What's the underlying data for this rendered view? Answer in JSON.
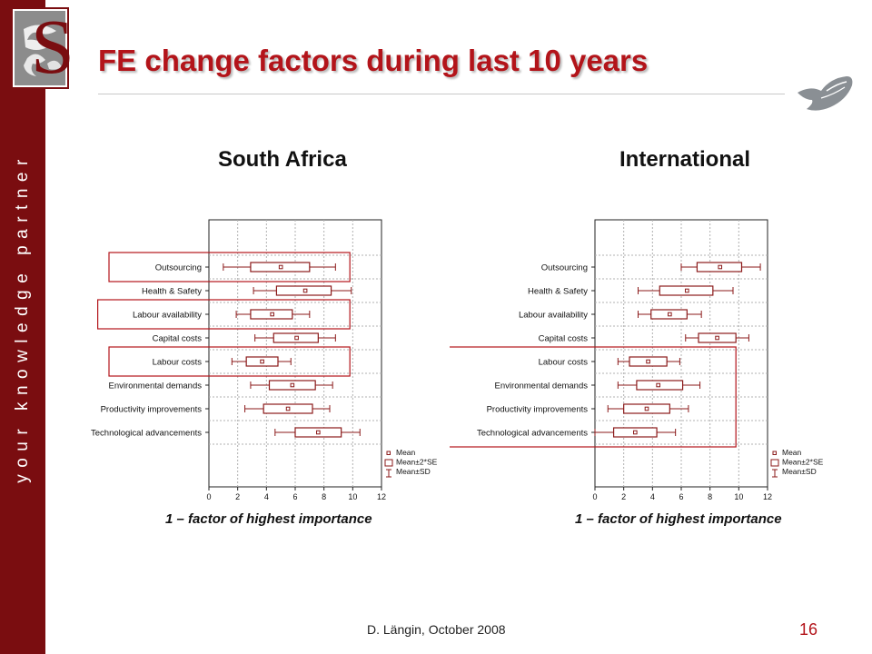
{
  "slide": {
    "title": "FE change factors during last 10 years",
    "tagline": "your knowledge partner",
    "logo_letter": "S",
    "footer": "D. Längin, October 2008",
    "page_number": "16"
  },
  "colors": {
    "sidebar": "#7a0d10",
    "title": "#b3141a",
    "series": "#8b1a1a",
    "highlight": "#b3141a",
    "grid": "#b0b0b0"
  },
  "chart_data": [
    {
      "type": "box",
      "title": "South Africa",
      "xlabel": "1 – factor of highest importance",
      "xlim": [
        0,
        12
      ],
      "xticks": [
        0,
        2,
        4,
        6,
        8,
        10,
        12
      ],
      "grid": true,
      "legend": {
        "placement": "bottom-right",
        "entries": [
          "Mean",
          "Mean±2*SE",
          "Mean±SD"
        ]
      },
      "categories": [
        "Outsourcing",
        "Health & Safety",
        "Labour availability",
        "Capital costs",
        "Labour costs",
        "Environmental demands",
        "Productivity improvements",
        "Technological advancements"
      ],
      "mean": [
        5.0,
        6.7,
        4.4,
        6.1,
        3.7,
        5.8,
        5.5,
        7.6
      ],
      "box_low": [
        2.9,
        4.7,
        2.9,
        4.5,
        2.6,
        4.2,
        3.8,
        6.0
      ],
      "box_high": [
        7.0,
        8.5,
        5.8,
        7.6,
        4.8,
        7.4,
        7.2,
        9.2
      ],
      "sd_low": [
        1.0,
        3.1,
        1.9,
        3.2,
        1.6,
        2.9,
        2.5,
        4.6
      ],
      "sd_high": [
        8.8,
        9.9,
        7.0,
        8.8,
        5.7,
        8.6,
        8.4,
        10.5
      ],
      "highlighted_groups": [
        [
          "Outsourcing"
        ],
        [
          "Labour availability"
        ],
        [
          "Labour costs"
        ]
      ]
    },
    {
      "type": "box",
      "title": "International",
      "xlabel": "1 – factor of highest importance",
      "xlim": [
        0,
        12
      ],
      "xticks": [
        0,
        2,
        4,
        6,
        8,
        10,
        12
      ],
      "grid": true,
      "legend": {
        "placement": "bottom-right",
        "entries": [
          "Mean",
          "Mean±2*SE",
          "Mean±SD"
        ]
      },
      "categories": [
        "Outsourcing",
        "Health & Safety",
        "Labour availability",
        "Capital costs",
        "Labour costs",
        "Environmental demands",
        "Productivity improvements",
        "Technological advancements"
      ],
      "mean": [
        8.7,
        6.4,
        5.2,
        8.5,
        3.7,
        4.4,
        3.6,
        2.8
      ],
      "box_low": [
        7.1,
        4.5,
        3.9,
        7.2,
        2.4,
        2.9,
        2.0,
        1.3
      ],
      "box_high": [
        10.2,
        8.2,
        6.4,
        9.8,
        5.0,
        6.1,
        5.2,
        4.3
      ],
      "sd_low": [
        6.0,
        3.0,
        3.0,
        6.3,
        1.6,
        1.6,
        0.9,
        0.0
      ],
      "sd_high": [
        11.5,
        9.6,
        7.4,
        10.7,
        5.9,
        7.3,
        6.5,
        5.6
      ],
      "highlighted_groups": [
        [
          "Labour costs",
          "Environmental demands",
          "Productivity improvements",
          "Technological advancements"
        ]
      ]
    }
  ]
}
